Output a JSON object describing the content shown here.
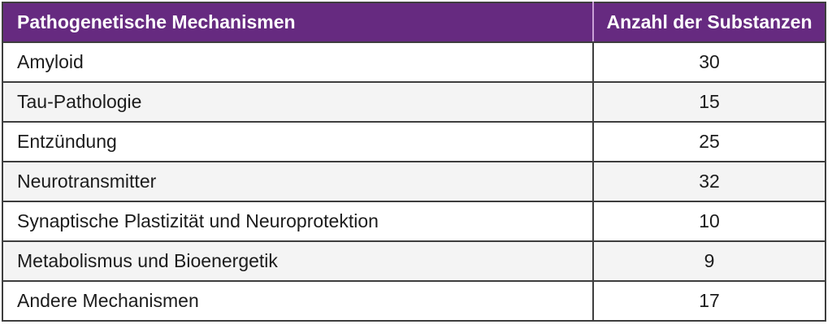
{
  "colors": {
    "header_bg": "#662A80",
    "header_text": "#FFFFFF",
    "header_divider": "#C9A0D6",
    "grid_border": "#3E3E3E",
    "row_bg": "#FFFFFF",
    "alt_row_bg": "#F4F4F4",
    "body_text": "#1C1C1C"
  },
  "table": {
    "columns": [
      {
        "key": "mechanism",
        "label": "Pathogenetische Mechanismen"
      },
      {
        "key": "count",
        "label": "Anzahl der Substanzen"
      }
    ],
    "rows": [
      {
        "mechanism": "Amyloid",
        "count": "30"
      },
      {
        "mechanism": "Tau-Pathologie",
        "count": "15"
      },
      {
        "mechanism": "Entzündung",
        "count": "25"
      },
      {
        "mechanism": "Neurotransmitter",
        "count": "32"
      },
      {
        "mechanism": "Synaptische Plastizität und Neuroprotektion",
        "count": "10"
      },
      {
        "mechanism": "Metabolismus und Bioenergetik",
        "count": "9"
      },
      {
        "mechanism": "Andere Mechanismen",
        "count": "17"
      }
    ]
  },
  "chart_data": {
    "type": "table",
    "title": "",
    "columns": [
      "Pathogenetische Mechanismen",
      "Anzahl der Substanzen"
    ],
    "categories": [
      "Amyloid",
      "Tau-Pathologie",
      "Entzündung",
      "Neurotransmitter",
      "Synaptische Plastizität und Neuroprotektion",
      "Metabolismus und Bioenergetik",
      "Andere Mechanismen"
    ],
    "values": [
      30,
      15,
      25,
      32,
      10,
      9,
      17
    ]
  }
}
